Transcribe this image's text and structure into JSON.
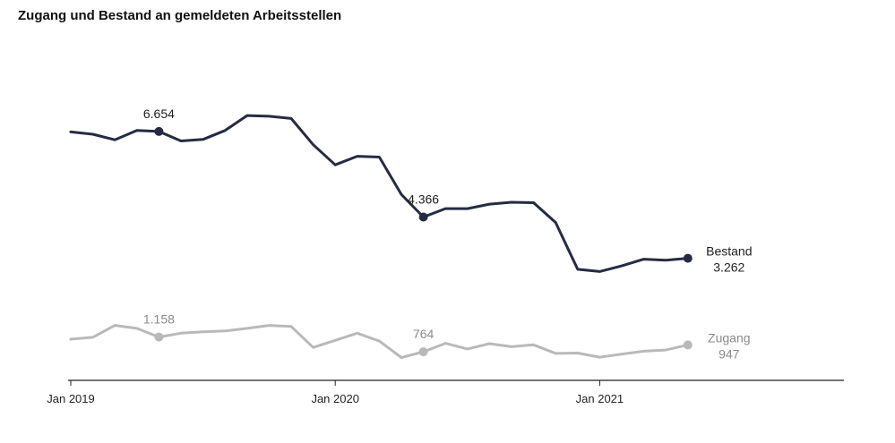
{
  "title": "Zugang und Bestand an gemeldeten Arbeitsstellen",
  "colors": {
    "bestand": "#262b44",
    "zugang": "#b9b9b9",
    "axis": "#222222",
    "text": "#222222"
  },
  "chart_data": {
    "type": "line",
    "title": "Zugang und Bestand an gemeldeten Arbeitsstellen",
    "x_tick_labels": [
      "Jan 2019",
      "Jan 2020",
      "Jan 2021"
    ],
    "x_range": [
      "2019-01",
      "2021-12"
    ],
    "y_range": [
      0,
      9000
    ],
    "grid": false,
    "x": [
      "2019-01",
      "2019-02",
      "2019-03",
      "2019-04",
      "2019-05",
      "2019-06",
      "2019-07",
      "2019-08",
      "2019-09",
      "2019-10",
      "2019-11",
      "2019-12",
      "2020-01",
      "2020-02",
      "2020-03",
      "2020-04",
      "2020-05",
      "2020-06",
      "2020-07",
      "2020-08",
      "2020-09",
      "2020-10",
      "2020-11",
      "2020-12",
      "2021-01",
      "2021-02",
      "2021-03",
      "2021-04",
      "2021-05"
    ],
    "series": [
      {
        "name": "Bestand",
        "end_label": "3.262",
        "values": [
          6640,
          6580,
          6430,
          6680,
          6654,
          6400,
          6440,
          6680,
          7080,
          7060,
          7000,
          6300,
          5760,
          5990,
          5970,
          4970,
          4366,
          4590,
          4590,
          4710,
          4760,
          4750,
          4220,
          2970,
          2910,
          3060,
          3240,
          3210,
          3262
        ]
      },
      {
        "name": "Zugang",
        "end_label": "947",
        "values": [
          1100,
          1150,
          1470,
          1390,
          1158,
          1260,
          1300,
          1320,
          1390,
          1470,
          1440,
          880,
          1070,
          1260,
          1050,
          610,
          764,
          990,
          840,
          980,
          900,
          950,
          720,
          730,
          620,
          700,
          780,
          810,
          947
        ]
      }
    ],
    "annotations": [
      {
        "series": "Bestand",
        "x": "2019-05",
        "label": "6.654"
      },
      {
        "series": "Bestand",
        "x": "2020-05",
        "label": "4.366"
      },
      {
        "series": "Bestand",
        "x": "2021-05",
        "label": "3.262"
      },
      {
        "series": "Zugang",
        "x": "2019-05",
        "label": "1.158"
      },
      {
        "series": "Zugang",
        "x": "2020-05",
        "label": "764"
      },
      {
        "series": "Zugang",
        "x": "2021-05",
        "label": "947"
      }
    ]
  }
}
